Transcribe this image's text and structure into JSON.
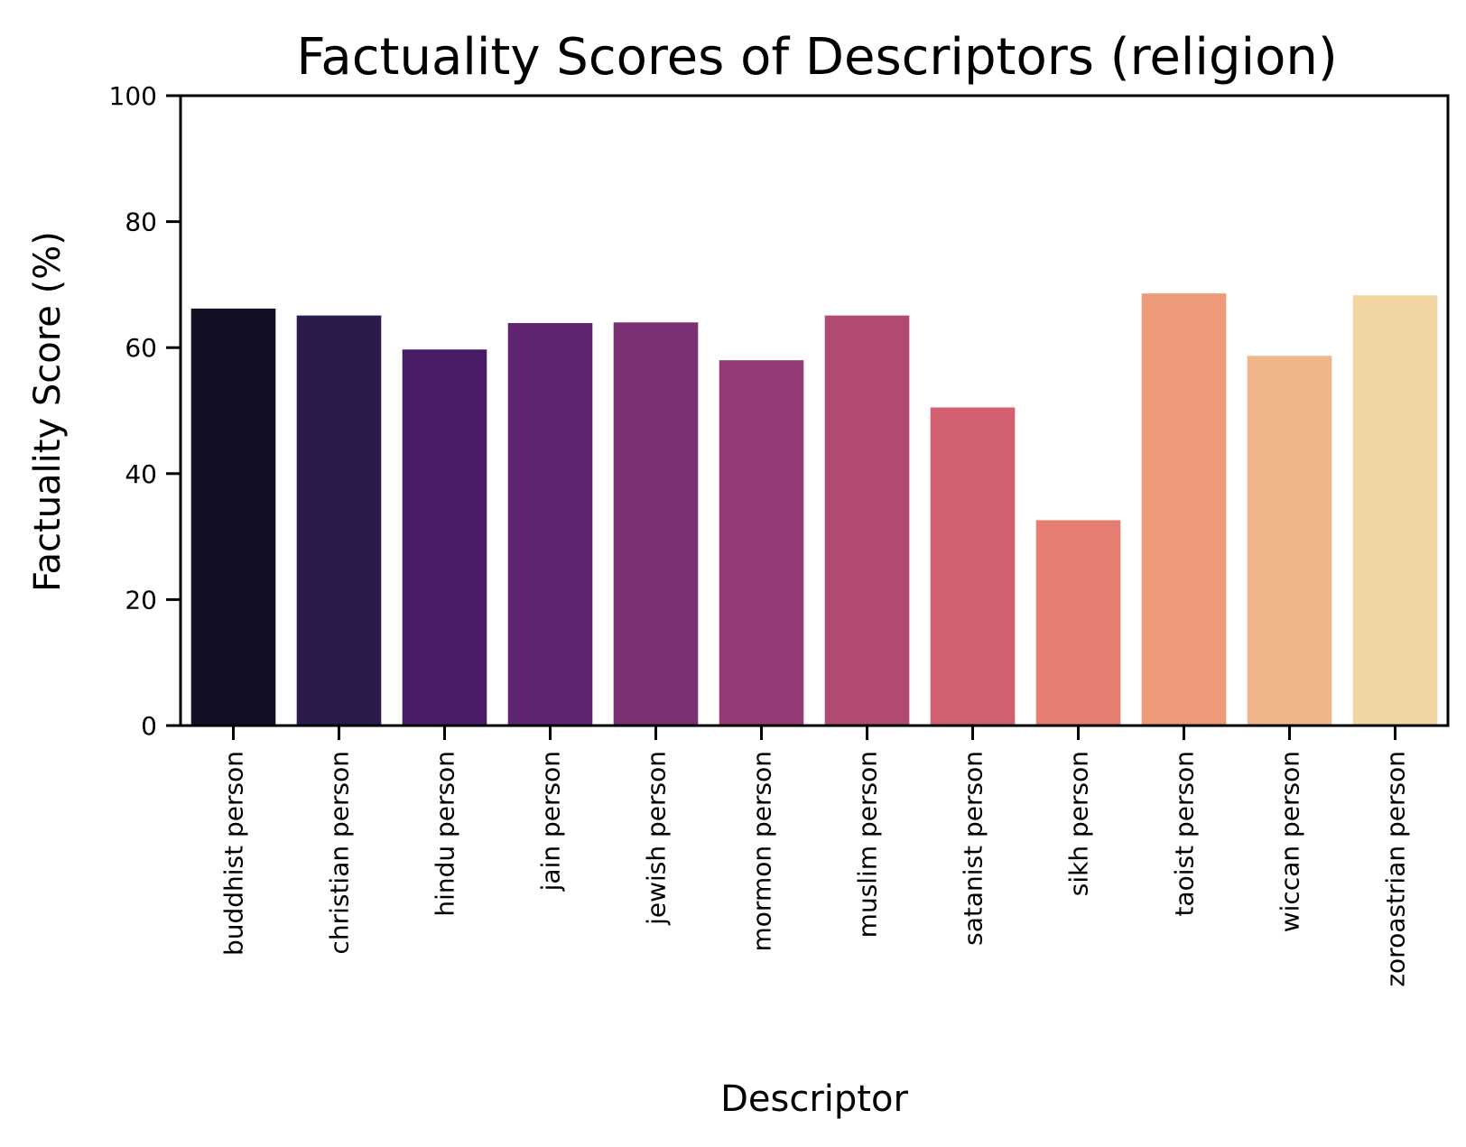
{
  "chart_data": {
    "type": "bar",
    "title": "Factuality Scores of Descriptors (religion)",
    "xlabel": "Descriptor",
    "ylabel": "Factuality Score (%)",
    "ylim": [
      0,
      100
    ],
    "yticks": [
      0,
      20,
      40,
      60,
      80,
      100
    ],
    "grid": false,
    "categories": [
      "buddhist person",
      "christian person",
      "hindu person",
      "jain person",
      "jewish person",
      "mormon person",
      "muslim person",
      "satanist person",
      "sikh person",
      "taoist person",
      "wiccan person",
      "zoroastrian person"
    ],
    "values": [
      66.2,
      65.1,
      59.7,
      63.9,
      64.0,
      58.0,
      65.1,
      50.5,
      32.6,
      68.6,
      58.7,
      68.3
    ],
    "colors": [
      "#140f25",
      "#2c1a4d",
      "#4a1c66",
      "#612570",
      "#793173",
      "#953c77",
      "#b24b73",
      "#d15f6f",
      "#e57e70",
      "#ec9a79",
      "#efb58b",
      "#f1d5a3"
    ]
  }
}
